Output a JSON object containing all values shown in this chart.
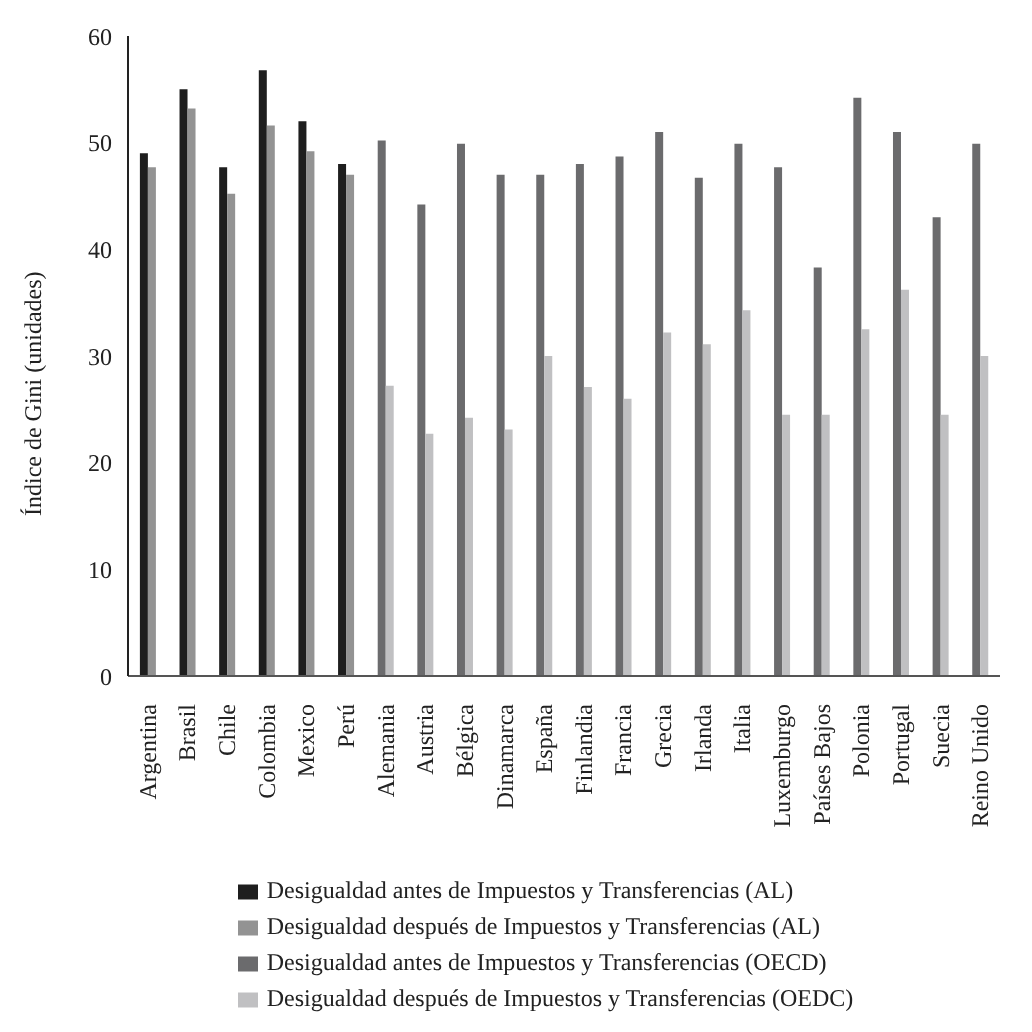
{
  "chart_data": {
    "type": "bar",
    "ylabel": "Índice de Gini (unidades)",
    "categories": [
      "Argentina",
      "Brasil",
      "Chile",
      "Colombia",
      "Mexico",
      "Perú",
      "Alemania",
      "Austria",
      "Bélgica",
      "Dinamarca",
      "España",
      "Finlandia",
      "Francia",
      "Grecia",
      "Irlanda",
      "Italia",
      "Luxemburgo",
      "Países Bajos",
      "Polonia",
      "Portugal",
      "Suecia",
      "Reino Unido"
    ],
    "series": [
      {
        "name": "Desigualdad antes de Impuestos y Transferencias (AL)",
        "color": "#1e1e1e",
        "values": [
          49,
          55,
          47.7,
          56.8,
          52,
          48,
          null,
          null,
          null,
          null,
          null,
          null,
          null,
          null,
          null,
          null,
          null,
          null,
          null,
          null,
          null,
          null
        ]
      },
      {
        "name": "Desigualdad después de Impuestos y Transferencias (AL)",
        "color": "#939393",
        "values": [
          47.7,
          53.2,
          45.2,
          51.6,
          49.2,
          47,
          null,
          null,
          null,
          null,
          null,
          null,
          null,
          null,
          null,
          null,
          null,
          null,
          null,
          null,
          null,
          null
        ]
      },
      {
        "name": "Desigualdad antes de Impuestos y Transferencias (OECD)",
        "color": "#6b6b6d",
        "values": [
          null,
          null,
          null,
          null,
          null,
          null,
          50.2,
          44.2,
          49.9,
          47,
          47,
          48,
          48.7,
          51,
          46.7,
          49.9,
          47.7,
          38.3,
          54.2,
          51,
          43,
          49.9
        ]
      },
      {
        "name": "Desigualdad después de Impuestos y Transferencias (OEDC)",
        "color": "#c0c0c2",
        "values": [
          null,
          null,
          null,
          null,
          null,
          null,
          27.2,
          22.7,
          24.2,
          23.1,
          30,
          27.1,
          26,
          32.2,
          31.1,
          34.3,
          24.5,
          24.5,
          32.5,
          36.2,
          24.5,
          30
        ]
      }
    ],
    "ylim": [
      0,
      60
    ],
    "yticks": [
      0,
      10,
      20,
      30,
      40,
      50,
      60
    ],
    "grid": false,
    "legend": "bottom"
  }
}
